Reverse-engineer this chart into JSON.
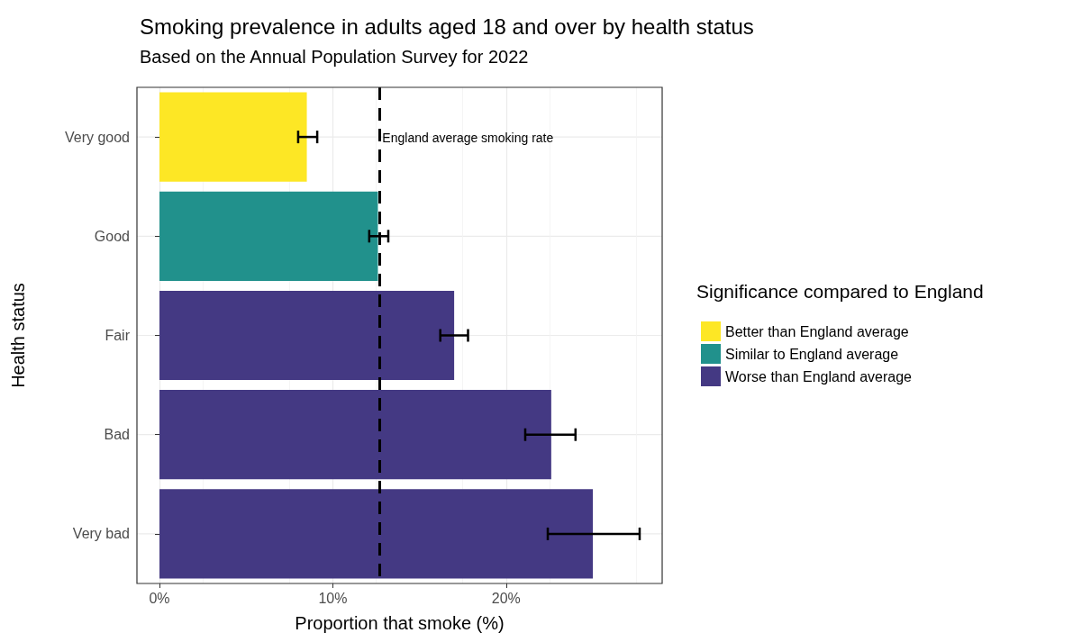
{
  "chart_data": {
    "type": "bar",
    "orientation": "horizontal",
    "stacked": true,
    "title": "Smoking prevalence in adults aged 18 and over by health status",
    "subtitle": "Based on the Annual Population Survey for 2022",
    "xlabel": "Proportion that smoke (%)",
    "ylabel": "Health status",
    "legend_title": "Significance compared to England",
    "categories": [
      "Very good",
      "Good",
      "Fair",
      "Bad",
      "Very bad"
    ],
    "series": [
      {
        "name": "Better than England average",
        "color": "#fde725",
        "values": [
          8.5,
          null,
          null,
          null,
          null
        ],
        "errors": [
          [
            8.0,
            9.1
          ],
          null,
          null,
          null,
          null
        ]
      },
      {
        "name": "Similar to England average",
        "color": "#21918c",
        "values": [
          null,
          12.6,
          null,
          null,
          null
        ],
        "errors": [
          null,
          [
            12.1,
            13.2
          ],
          null,
          null,
          null
        ]
      },
      {
        "name": "Worse than England average",
        "color": "#443983",
        "values": [
          null,
          null,
          17.0,
          22.6,
          25.0
        ],
        "errors": [
          null,
          null,
          [
            16.2,
            17.8
          ],
          [
            21.1,
            24.0
          ],
          [
            22.4,
            27.7
          ]
        ]
      }
    ],
    "xlim": [
      -1.3,
      29
    ],
    "xticks": [
      {
        "value": 0,
        "label": "0%"
      },
      {
        "value": 10,
        "label": "10%"
      },
      {
        "value": 20,
        "label": "20%"
      }
    ],
    "ref_lines": [
      {
        "axis": "x",
        "value": 12.7,
        "label": "England average smoking rate",
        "line_style": "dashed",
        "color": "#000000"
      }
    ],
    "grid": true,
    "legend": "right"
  }
}
